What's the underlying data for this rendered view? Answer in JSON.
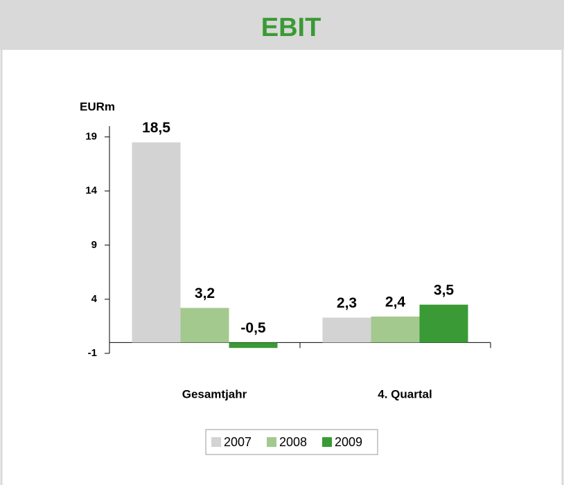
{
  "chart_data": {
    "type": "bar",
    "title": "EBIT",
    "y_label": "EURm",
    "categories": [
      "Gesamtjahr",
      "4. Quartal"
    ],
    "series": [
      {
        "name": "2007",
        "color": "#d3d3d3",
        "values": [
          18.5,
          2.3
        ],
        "value_labels": [
          "18,5",
          "2,3"
        ]
      },
      {
        "name": "2008",
        "color": "#a3c98f",
        "values": [
          3.2,
          2.4
        ],
        "value_labels": [
          "3,2",
          "2,4"
        ]
      },
      {
        "name": "2009",
        "color": "#3a9a35",
        "values": [
          -0.5,
          3.5
        ],
        "value_labels": [
          "-0,5",
          "3,5"
        ]
      }
    ],
    "ylim": [
      -1,
      20
    ],
    "yticks": [
      -1,
      4,
      9,
      14,
      19
    ],
    "legend": "bottom"
  }
}
